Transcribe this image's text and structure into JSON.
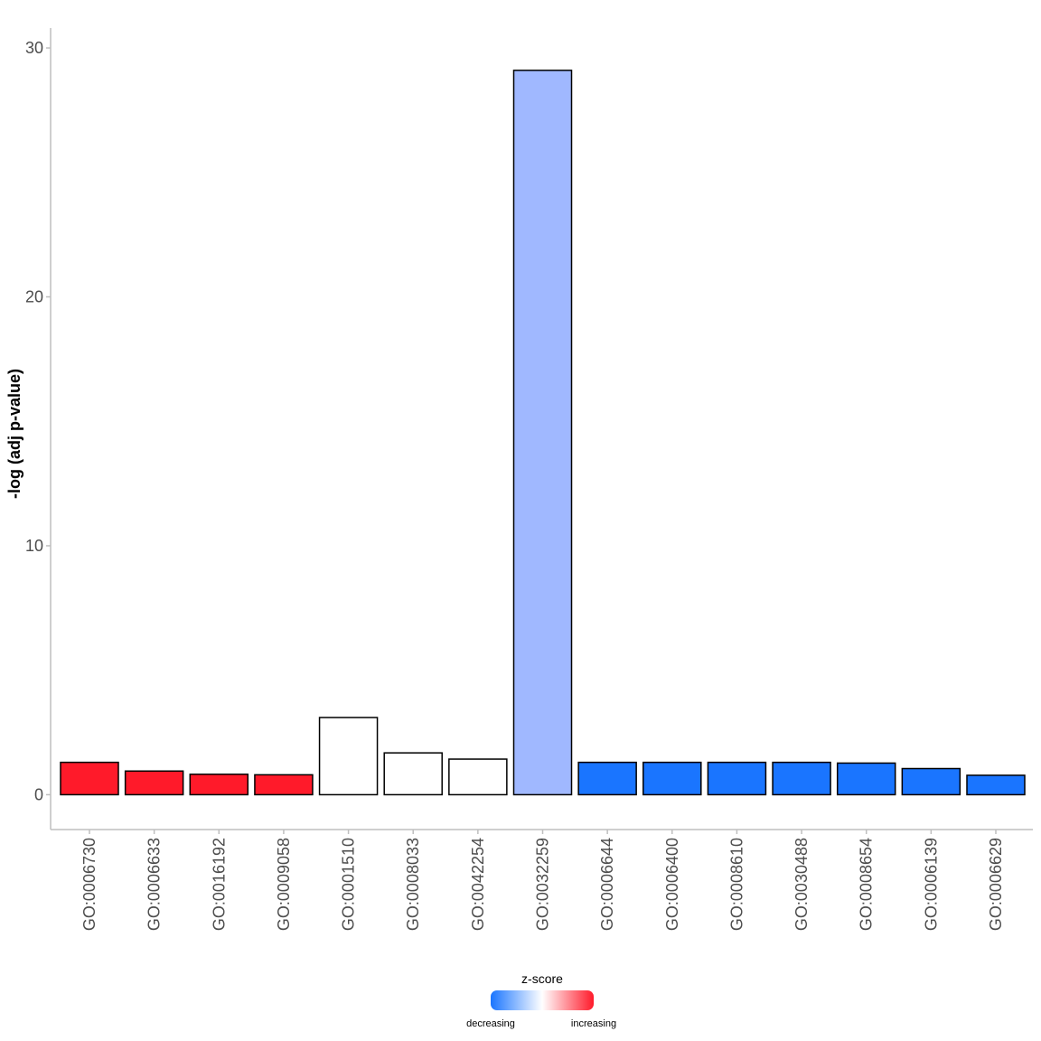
{
  "chart_data": {
    "type": "bar",
    "title": "",
    "xlabel": "",
    "ylabel": "-log (adj p-value)",
    "ylim": [
      -1.4,
      30.8
    ],
    "yticks": [
      0,
      10,
      20,
      30
    ],
    "grid": false,
    "categories": [
      "GO:0006730",
      "GO:0006633",
      "GO:0016192",
      "GO:0009058",
      "GO:0001510",
      "GO:0008033",
      "GO:0042254",
      "GO:0032259",
      "GO:0006644",
      "GO:0006400",
      "GO:0008610",
      "GO:0030488",
      "GO:0008654",
      "GO:0006139",
      "GO:0006629"
    ],
    "values": [
      1.3,
      0.95,
      0.82,
      0.8,
      3.1,
      1.68,
      1.43,
      29.1,
      1.3,
      1.3,
      1.3,
      1.3,
      1.27,
      1.05,
      0.78
    ],
    "bar_colors": [
      "#ff1a2a",
      "#ff1a2a",
      "#ff1a2a",
      "#ff1a2a",
      "#ffffff",
      "#ffffff",
      "#ffffff",
      "#a0b8ff",
      "#1a75ff",
      "#1a75ff",
      "#1a75ff",
      "#1a75ff",
      "#1a75ff",
      "#1a75ff",
      "#1a75ff"
    ],
    "legend": {
      "title": "z-score",
      "position": "bottom",
      "low_label": "decreasing",
      "high_label": "increasing",
      "low_color": "#1a75ff",
      "mid_color": "#ffffff",
      "high_color": "#ff1a2a"
    }
  }
}
